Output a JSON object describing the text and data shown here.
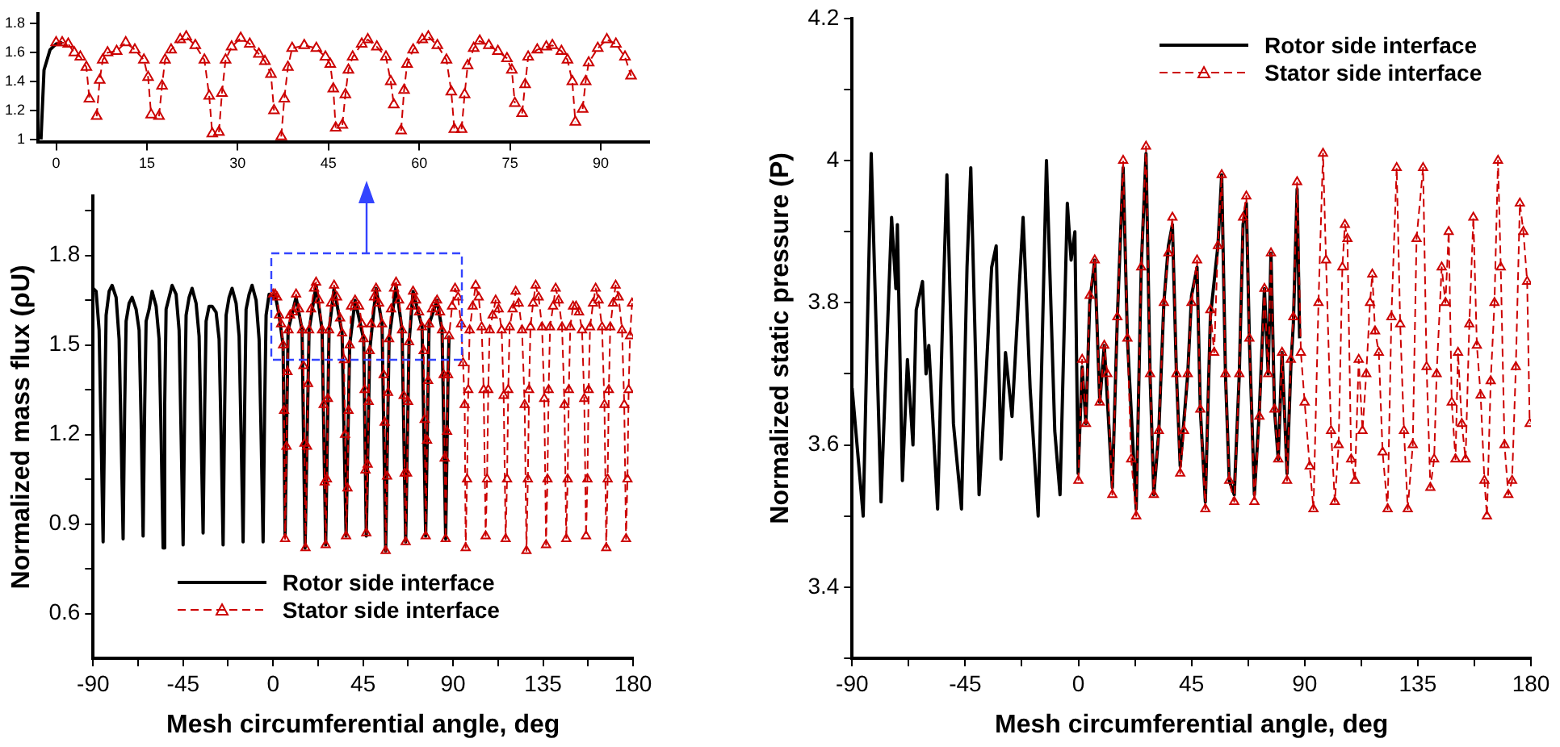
{
  "chart_data": [
    {
      "type": "line",
      "xlim": [
        -3,
        98
      ],
      "ylim": [
        0.98,
        1.87
      ],
      "xticks": [
        0,
        15,
        30,
        45,
        60,
        75,
        90
      ],
      "yticks": [
        1,
        1.2,
        1.4,
        1.6,
        1.8
      ],
      "grid": false,
      "series": [
        {
          "color": "#000000",
          "line_style": "solid",
          "marker": "none",
          "x": [
            -2.5,
            -2,
            -1,
            0,
            1
          ],
          "values": [
            1.0,
            1.48,
            1.62,
            1.66,
            1.67
          ]
        },
        {
          "color": "#cc0000",
          "line_style": "dashed",
          "marker": "triangle",
          "x": [
            0,
            1,
            2,
            3,
            4,
            5,
            5.5,
            6,
            6.7,
            7.2,
            7.7,
            8.5,
            10,
            11.5,
            13,
            14.5,
            15.2,
            15.7,
            16.2,
            17,
            17.5,
            18,
            19,
            20.5,
            21.5,
            23,
            24.5,
            25.3,
            25.8,
            26.3,
            26.9,
            27.4,
            28,
            29,
            30.5,
            32,
            33.5,
            34.5,
            35.5,
            36,
            36.5,
            37.2,
            37.7,
            38.3,
            39,
            41,
            43,
            44.5,
            45.3,
            45.8,
            46.2,
            46.6,
            47.3,
            47.8,
            48.3,
            49,
            50.5,
            51.5,
            53,
            54.5,
            55.3,
            55.8,
            56.3,
            57,
            57.5,
            58,
            59,
            60.5,
            61.5,
            63,
            64.5,
            65.3,
            65.8,
            66.3,
            67,
            67.5,
            68,
            69,
            70,
            71.5,
            73,
            74.5,
            75.3,
            75.8,
            76.3,
            77,
            77.5,
            78,
            79.5,
            81,
            82,
            83.5,
            84.5,
            85.3,
            85.8,
            86.3,
            87,
            87.5,
            88,
            89.5,
            91,
            92.5,
            94,
            95
          ],
          "values": [
            1.67,
            1.67,
            1.66,
            1.6,
            1.57,
            1.5,
            1.28,
            null,
            1.16,
            1.41,
            1.55,
            1.6,
            1.61,
            1.67,
            1.62,
            1.55,
            1.43,
            1.17,
            null,
            1.16,
            1.37,
            1.55,
            1.62,
            1.69,
            1.71,
            1.65,
            1.55,
            1.3,
            1.04,
            null,
            1.05,
            1.32,
            1.55,
            1.64,
            1.7,
            1.66,
            1.59,
            1.54,
            1.45,
            1.2,
            null,
            1.02,
            1.28,
            1.5,
            1.63,
            1.65,
            1.63,
            1.57,
            1.52,
            1.35,
            1.08,
            null,
            1.1,
            1.31,
            1.48,
            1.57,
            1.66,
            1.69,
            1.64,
            1.57,
            1.4,
            1.24,
            null,
            1.06,
            1.34,
            1.52,
            1.62,
            1.69,
            1.71,
            1.65,
            1.55,
            1.33,
            1.07,
            null,
            1.07,
            1.31,
            1.51,
            1.63,
            1.68,
            1.65,
            1.61,
            1.56,
            1.48,
            1.25,
            null,
            1.18,
            1.38,
            1.57,
            1.62,
            1.64,
            1.65,
            1.61,
            1.55,
            1.4,
            1.12,
            null,
            1.21,
            1.4,
            1.53,
            1.63,
            1.69,
            1.66,
            1.57,
            1.44
          ]
        }
      ]
    },
    {
      "type": "line",
      "xlabel": "Mesh circumferential angle, deg",
      "ylabel": "Normalized mass flux (ρU)",
      "xlim": [
        -90,
        180
      ],
      "ylim": [
        0.45,
        2.0
      ],
      "xticks": [
        -90,
        {
          "value": -67.5,
          "label": null
        },
        -45,
        {
          "value": -22.5,
          "label": null
        },
        0,
        {
          "value": 22.5,
          "label": null
        },
        45,
        {
          "value": 67.5,
          "label": null
        },
        90,
        {
          "value": 112.5,
          "label": null
        },
        135,
        {
          "value": 157.5,
          "label": null
        },
        180
      ],
      "yticks": [
        0.6,
        {
          "value": 0.75,
          "label": null
        },
        0.9,
        {
          "value": 1.05,
          "label": null
        },
        1.2,
        {
          "value": 1.35,
          "label": null
        },
        1.5,
        {
          "value": 1.65,
          "label": null
        },
        1.8,
        {
          "value": 1.95,
          "label": null
        }
      ],
      "grid": false,
      "legend": "bottom",
      "series": [
        {
          "name": "Rotor side interface",
          "color": "#000000",
          "line_style": "solid",
          "marker": "none",
          "x": [
            -90,
            -88.5,
            -87,
            -86,
            -85,
            -84.2,
            -83.5,
            -82,
            -80.5,
            -78.5,
            -77,
            -76,
            -75,
            -74.2,
            -73.5,
            -72,
            -70.5,
            -68.5,
            -67,
            -66,
            -65,
            -64.2,
            -63.5,
            -62,
            -60.5,
            -58.5,
            -57,
            -56,
            -55,
            -54.2,
            -53.5,
            -52,
            -50.5,
            -48.5,
            -47,
            -46,
            -45,
            -44.2,
            -43.5,
            -42,
            -40.5,
            -38.5,
            -37,
            -36,
            -35,
            -34.2,
            -33.5,
            -32,
            -30.5,
            -28.5,
            -27,
            -26,
            -25,
            -24.2,
            -23.5,
            -22,
            -20.5,
            -18.5,
            -17,
            -16,
            -15,
            -14.2,
            -13.5,
            -12,
            -10.5,
            -8.5,
            -7,
            -6,
            -5,
            -4.2,
            -3.5,
            -2,
            -0.5,
            1,
            3,
            5,
            6,
            7.5,
            11.5,
            14.5,
            16,
            18,
            21.5,
            24.5,
            26.3,
            28,
            30.5,
            34.5,
            36.5,
            38.3,
            41,
            45.3,
            46.6,
            48.3,
            51.5,
            54.5,
            56.3,
            58,
            61.5,
            64.5,
            66.3,
            68,
            70,
            74.5,
            76.3,
            78,
            82,
            84.5,
            86.3,
            87.5,
            88
          ],
          "values": [
            1.69,
            1.68,
            1.55,
            1.2,
            0.84,
            1.3,
            1.6,
            1.68,
            1.7,
            1.66,
            1.52,
            1.2,
            0.85,
            1.3,
            1.58,
            1.64,
            1.66,
            1.62,
            1.55,
            1.25,
            0.86,
            1.3,
            1.58,
            1.62,
            1.68,
            1.63,
            1.52,
            1.2,
            0.82,
            1.3,
            1.62,
            1.66,
            1.7,
            1.67,
            1.55,
            1.2,
            0.83,
            1.3,
            1.6,
            1.66,
            1.69,
            1.64,
            1.53,
            1.2,
            0.87,
            1.3,
            1.58,
            1.63,
            1.63,
            1.61,
            1.52,
            1.2,
            0.83,
            1.3,
            1.6,
            1.66,
            1.69,
            1.64,
            1.53,
            1.2,
            0.84,
            1.3,
            1.62,
            1.67,
            1.7,
            1.65,
            1.52,
            1.2,
            0.84,
            1.3,
            1.6,
            1.67,
            1.66,
            1.67,
            1.6,
            1.5,
            0.86,
            1.55,
            1.66,
            1.55,
            0.82,
            1.55,
            1.7,
            1.55,
            0.83,
            1.55,
            1.69,
            1.54,
            0.86,
            1.5,
            1.65,
            1.52,
            0.86,
            1.48,
            1.69,
            1.57,
            0.81,
            1.52,
            1.7,
            1.55,
            0.84,
            1.51,
            1.68,
            1.56,
            0.86,
            1.57,
            1.65,
            1.55,
            0.85,
            1.4,
            1.53
          ]
        },
        {
          "name": "Stator side interface",
          "color": "#cc0000",
          "line_style": "dashed",
          "marker": "triangle",
          "x": [
            0,
            1,
            2,
            3,
            4,
            5,
            5.5,
            6,
            6.7,
            7.2,
            7.7,
            8.5,
            10,
            11.5,
            13,
            14.5,
            15.2,
            15.7,
            16.2,
            17,
            17.5,
            18,
            19,
            20.5,
            21.5,
            23,
            24.5,
            25.3,
            25.8,
            26.3,
            26.9,
            27.4,
            28,
            29,
            30.5,
            32,
            33.5,
            34.5,
            35.5,
            36,
            36.5,
            37.2,
            37.7,
            38.3,
            39,
            41,
            43,
            44.5,
            45.3,
            45.8,
            46.2,
            46.6,
            47.3,
            47.8,
            48.3,
            49,
            50.5,
            51.5,
            53,
            54.5,
            55.3,
            55.8,
            56.3,
            57,
            57.5,
            58,
            59,
            60.5,
            61.5,
            63,
            64.5,
            65.3,
            65.8,
            66.3,
            67,
            67.5,
            68,
            69,
            70,
            71.5,
            73,
            74.5,
            75.3,
            75.8,
            76.3,
            77,
            77.5,
            78,
            79.5,
            81,
            82,
            83.5,
            84.5,
            85.3,
            85.8,
            86.3,
            87,
            87.5,
            88,
            89.5,
            91,
            92.5,
            94,
            95,
            95.8,
            96.3,
            97,
            97.6,
            98.3,
            99.8,
            101.3,
            102.8,
            104.3,
            105.3,
            106.3,
            107,
            107.6,
            108.3,
            109.8,
            111.3,
            112.8,
            114.3,
            115.3,
            116.3,
            117,
            117.6,
            118.3,
            119.8,
            121.3,
            122.8,
            124.5,
            125.8,
            126.7,
            127.4,
            128,
            128.7,
            130,
            131.3,
            132.8,
            134.5,
            135.6,
            136.5,
            137.2,
            137.8,
            138.5,
            140,
            141.3,
            142.8,
            144.5,
            145.7,
            146.6,
            147.3,
            147.9,
            148.6,
            150,
            151.5,
            153,
            154.5,
            155.6,
            156.5,
            157.2,
            157.8,
            158.5,
            160,
            161.3,
            162.8,
            164.5,
            165.7,
            166.6,
            167.3,
            167.9,
            168.6,
            170,
            171.3,
            172.8,
            174.5,
            175.6,
            176.5,
            177.2,
            177.8,
            178.5,
            179.5
          ],
          "values": [
            1.67,
            1.67,
            1.66,
            1.6,
            1.57,
            1.5,
            1.28,
            0.85,
            1.16,
            1.41,
            1.55,
            1.6,
            1.61,
            1.67,
            1.62,
            1.55,
            1.43,
            1.17,
            0.82,
            1.16,
            1.37,
            1.55,
            1.62,
            1.69,
            1.71,
            1.65,
            1.55,
            1.3,
            1.04,
            0.83,
            1.05,
            1.32,
            1.55,
            1.64,
            1.7,
            1.66,
            1.59,
            1.54,
            1.45,
            1.2,
            0.86,
            1.02,
            1.28,
            1.5,
            1.63,
            1.65,
            1.63,
            1.57,
            1.52,
            1.35,
            1.08,
            0.87,
            1.1,
            1.31,
            1.48,
            1.57,
            1.66,
            1.69,
            1.64,
            1.57,
            1.4,
            1.24,
            0.81,
            1.06,
            1.34,
            1.52,
            1.62,
            1.69,
            1.71,
            1.65,
            1.55,
            1.33,
            1.07,
            0.84,
            1.07,
            1.31,
            1.51,
            1.63,
            1.68,
            1.65,
            1.61,
            1.56,
            1.48,
            1.25,
            0.86,
            1.18,
            1.38,
            1.57,
            1.62,
            1.64,
            1.65,
            1.61,
            1.55,
            1.4,
            1.12,
            0.85,
            1.21,
            1.4,
            1.53,
            1.63,
            1.69,
            1.66,
            1.57,
            1.44,
            1.3,
            0.82,
            1.05,
            1.35,
            1.55,
            1.63,
            1.7,
            1.66,
            1.56,
            1.35,
            0.86,
            1.05,
            1.35,
            1.55,
            1.6,
            1.65,
            1.62,
            1.55,
            1.33,
            0.85,
            1.05,
            1.35,
            1.56,
            1.62,
            1.68,
            1.64,
            1.55,
            1.3,
            0.81,
            1.05,
            1.35,
            1.56,
            1.64,
            1.7,
            1.66,
            1.56,
            1.32,
            0.83,
            1.05,
            1.35,
            1.56,
            1.63,
            1.69,
            1.65,
            1.56,
            1.3,
            0.85,
            1.05,
            1.35,
            1.56,
            1.63,
            1.63,
            1.61,
            1.55,
            1.32,
            0.86,
            1.05,
            1.35,
            1.56,
            1.64,
            1.69,
            1.65,
            1.56,
            1.3,
            0.82,
            1.05,
            1.35,
            1.56,
            1.64,
            1.7,
            1.66,
            1.55,
            1.3,
            0.85,
            1.05,
            1.35,
            1.53,
            1.64
          ]
        }
      ]
    },
    {
      "type": "line",
      "xlabel": "Mesh circumferential angle, deg",
      "ylabel": "Normalized static pressure (P)",
      "xlim": [
        -90,
        180
      ],
      "ylim": [
        3.3,
        4.2
      ],
      "xticks": [
        -90,
        {
          "value": -67.5,
          "label": null
        },
        -45,
        {
          "value": -22.5,
          "label": null
        },
        0,
        {
          "value": 22.5,
          "label": null
        },
        45,
        {
          "value": 67.5,
          "label": null
        },
        90,
        {
          "value": 112.5,
          "label": null
        },
        135,
        {
          "value": 157.5,
          "label": null
        },
        180
      ],
      "yticks": [
        {
          "value": 3.3,
          "label": null
        },
        3.4,
        {
          "value": 3.5,
          "label": null
        },
        3.6,
        {
          "value": 3.7,
          "label": null
        },
        3.8,
        {
          "value": 3.9,
          "label": null
        },
        4,
        {
          "value": 4.1,
          "label": null
        },
        4.2
      ],
      "grid": false,
      "legend": "top right",
      "series": [
        {
          "name": "Rotor side interface",
          "color": "#000000",
          "line_style": "solid",
          "marker": "none",
          "x": [
            -90,
            -85.6,
            -82.4,
            -78.5,
            -74.3,
            -72.6,
            -72,
            -70,
            -68,
            -65.8,
            -64.5,
            -62,
            -60.6,
            -59.5,
            -56,
            -54,
            -52.3,
            -49.7,
            -46.5,
            -44.3,
            -42.8,
            -39.5,
            -36.7,
            -34.5,
            -32.7,
            -30.8,
            -29,
            -26.4,
            -24.7,
            -22,
            -19.2,
            -16,
            -12.7,
            -9.4,
            -7.3,
            -4.4,
            -2.9,
            -1.4,
            -0.1,
            1.5,
            3,
            4.5,
            6.5,
            8.5,
            10.3,
            13.5,
            15.5,
            17.8,
            19.5,
            23,
            25,
            26.9,
            28.5,
            30,
            32,
            34,
            35.8,
            37.4,
            39,
            40.5,
            43.5,
            45,
            47.2,
            48.5,
            50.5,
            52.5,
            55.5,
            57,
            58.5,
            60,
            62,
            64,
            65.5,
            66.8,
            68,
            70,
            72,
            74,
            75.5,
            76.6,
            78,
            79.5,
            81,
            83,
            84.5,
            85.5,
            87,
            88
          ],
          "values": [
            3.68,
            3.5,
            4.01,
            3.52,
            3.92,
            3.82,
            3.91,
            3.55,
            3.72,
            3.6,
            3.79,
            3.83,
            3.7,
            3.74,
            3.51,
            3.78,
            3.98,
            3.63,
            3.51,
            3.85,
            3.99,
            3.53,
            3.7,
            3.85,
            3.88,
            3.58,
            3.73,
            3.64,
            3.75,
            3.92,
            3.68,
            3.5,
            4.0,
            3.62,
            3.53,
            3.94,
            3.86,
            3.9,
            3.56,
            3.71,
            3.63,
            3.8,
            3.86,
            3.66,
            3.74,
            3.54,
            3.78,
            3.99,
            3.75,
            3.51,
            3.85,
            4.01,
            3.7,
            3.53,
            3.62,
            3.8,
            3.88,
            3.91,
            3.7,
            3.57,
            3.7,
            3.81,
            3.85,
            3.65,
            3.52,
            3.78,
            3.88,
            3.98,
            3.7,
            3.55,
            3.53,
            3.7,
            3.91,
            3.94,
            3.75,
            3.53,
            3.65,
            3.82,
            3.7,
            3.87,
            3.65,
            3.58,
            3.73,
            3.56,
            3.71,
            3.77,
            3.96,
            3.75
          ]
        },
        {
          "name": "Stator side interface",
          "color": "#cc0000",
          "line_style": "dashed",
          "marker": "triangle",
          "x": [
            0,
            1.5,
            3,
            4.5,
            6.5,
            8.5,
            10.3,
            11.5,
            13.5,
            15.5,
            17.8,
            19.5,
            21,
            23,
            25,
            26.9,
            28.5,
            30,
            32,
            34,
            35.8,
            37.4,
            39,
            40.5,
            42,
            43.5,
            45,
            47.2,
            48.5,
            50.5,
            52.5,
            54,
            55.5,
            57,
            58.5,
            60,
            62,
            64,
            65.5,
            66.8,
            68,
            70,
            72,
            74,
            75.5,
            76.6,
            78,
            79.5,
            81,
            83,
            84.5,
            85.5,
            87,
            88.5,
            90,
            92,
            93.5,
            95.5,
            97.3,
            98.5,
            100.5,
            102,
            103.5,
            105,
            106,
            107,
            108.5,
            110,
            111.5,
            113,
            114.5,
            116,
            116.9,
            118,
            119.5,
            121,
            123,
            124.5,
            126.6,
            128,
            129.5,
            131,
            133,
            134.5,
            137.1,
            138.5,
            140,
            141.5,
            142.5,
            144.5,
            146,
            147.3,
            148.5,
            150,
            151,
            152.5,
            154,
            155.5,
            157.1,
            158.5,
            160,
            161.5,
            162.5,
            164,
            165.5,
            166.9,
            168,
            169.5,
            171,
            172.5,
            174,
            175.6,
            177,
            178.5,
            179.5
          ],
          "values": [
            3.55,
            3.72,
            3.63,
            3.81,
            3.86,
            3.66,
            3.74,
            3.7,
            3.53,
            3.78,
            4.0,
            3.75,
            3.58,
            3.5,
            3.85,
            4.02,
            3.7,
            3.53,
            3.62,
            3.8,
            3.87,
            3.92,
            3.7,
            3.56,
            3.62,
            3.7,
            3.8,
            3.86,
            3.65,
            3.51,
            3.79,
            3.73,
            3.88,
            3.98,
            3.7,
            3.55,
            3.52,
            3.7,
            3.92,
            3.95,
            3.75,
            3.52,
            3.64,
            3.82,
            3.7,
            3.87,
            3.65,
            3.58,
            3.73,
            3.55,
            3.72,
            3.78,
            3.97,
            3.73,
            3.66,
            3.57,
            3.51,
            3.8,
            4.01,
            3.86,
            3.62,
            3.52,
            3.6,
            3.85,
            3.91,
            3.89,
            3.58,
            3.55,
            3.72,
            3.62,
            3.7,
            3.8,
            3.84,
            3.76,
            3.73,
            3.59,
            3.51,
            3.78,
            3.99,
            3.77,
            3.62,
            3.51,
            3.6,
            3.89,
            3.99,
            3.71,
            3.54,
            3.58,
            3.7,
            3.85,
            3.8,
            3.9,
            3.66,
            3.58,
            3.73,
            3.63,
            3.58,
            3.77,
            3.92,
            3.74,
            3.67,
            3.55,
            3.5,
            3.69,
            3.8,
            4.0,
            3.85,
            3.6,
            3.53,
            3.55,
            3.71,
            3.94,
            3.9,
            3.83,
            3.63
          ]
        }
      ]
    }
  ]
}
